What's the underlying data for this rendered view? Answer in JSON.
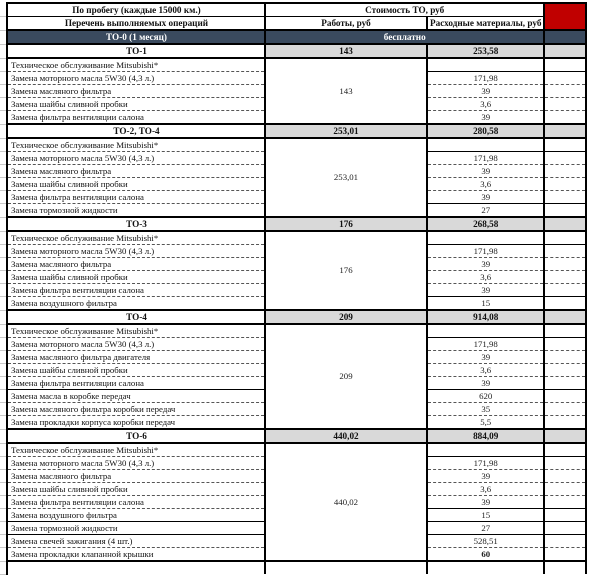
{
  "header": {
    "col_mileage": "По пробегу (каждые 15000 км.)",
    "col_cost": "Стоимость ТО, руб",
    "col_operations": "Перечень выполняемых операций",
    "col_works": "Работы, руб",
    "col_materials": "Расходные материалы, руб"
  },
  "free_row": {
    "label": "ТО-0 (1 месяц)",
    "value": "бесплатно"
  },
  "sections": [
    {
      "label": "ТО-1",
      "works": "143",
      "materials": "253,58",
      "items": [
        {
          "name": "Техническое обслуживание Mitsubishi*",
          "value": "",
          "vs": "s"
        },
        {
          "name": "Замена моторного масла 5W30 (4,3 л.)",
          "value": "171,98"
        },
        {
          "name": "Замена масляного фильтра",
          "value": "39"
        },
        {
          "name": "Замена шайбы сливной пробки",
          "value": "3,6"
        },
        {
          "name": "Замена фильтра вентиляции салона",
          "value": "39"
        }
      ]
    },
    {
      "label": "ТО-2, ТО-4",
      "works": "253,01",
      "materials": "280,58",
      "items": [
        {
          "name": "Техническое обслуживание Mitsubishi*",
          "value": "",
          "vs": "s"
        },
        {
          "name": "Замена моторного масла 5W30 (4,3 л.)",
          "value": "171,98"
        },
        {
          "name": "Замена масляного фильтра",
          "value": "39"
        },
        {
          "name": "Замена шайбы сливной пробки",
          "value": "3,6"
        },
        {
          "name": "Замена фильтра вентиляции салона",
          "value": "39",
          "vs": "s"
        },
        {
          "name": "Замена тормозной жидкости",
          "value": "27"
        }
      ]
    },
    {
      "label": "ТО-3",
      "works": "176",
      "materials": "268,58",
      "items": [
        {
          "name": "Техническое обслуживание Mitsubishi*",
          "value": "",
          "vs": "s"
        },
        {
          "name": "Замена моторного масла 5W30 (4,3 л.)",
          "value": "171,98"
        },
        {
          "name": "Замена масляного фильтра",
          "value": "39"
        },
        {
          "name": "Замена шайбы сливной пробки",
          "value": "3,6"
        },
        {
          "name": "Замена фильтра вентиляции салона",
          "value": "39",
          "vs": "s"
        },
        {
          "name": "Замена воздушного фильтра",
          "value": "15"
        }
      ]
    },
    {
      "label": "ТО-4",
      "works": "209",
      "materials": "914,08",
      "items": [
        {
          "name": "Техническое обслуживание Mitsubishi*",
          "value": "",
          "vs": "s"
        },
        {
          "name": "Замена моторного масла 5W30 (4,3 л.)",
          "value": "171,98"
        },
        {
          "name": "Замена масляного фильтра двигателя",
          "value": "39"
        },
        {
          "name": "Замена шайбы сливной пробки",
          "value": "3,6"
        },
        {
          "name": "Замена фильтра вентиляции салона",
          "value": "39",
          "ns": "s",
          "vs": "s"
        },
        {
          "name": "Замена масла в коробке передач",
          "value": "620"
        },
        {
          "name": "Замена масляного фильтра коробки передач",
          "value": "35"
        },
        {
          "name": "Замена прокладки корпуса коробки передач",
          "value": "5,5"
        }
      ]
    },
    {
      "label": "ТО-6",
      "works": "440,02",
      "materials": "884,09",
      "items": [
        {
          "name": "Техническое обслуживание Mitsubishi*",
          "value": "",
          "vs": "s"
        },
        {
          "name": "Замена моторного масла 5W30 (4,3 л.)",
          "value": "171,98"
        },
        {
          "name": "Замена масляного фильтра",
          "value": "39"
        },
        {
          "name": "Замена шайбы сливной пробки",
          "value": "3,6"
        },
        {
          "name": "Замена фильтра вентиляции салона",
          "value": "39",
          "vs": "s"
        },
        {
          "name": "Замена воздушного фильтра",
          "value": "15",
          "ns": "s",
          "vs": "s"
        },
        {
          "name": "Замена тормозной жидкости",
          "value": "27",
          "ns": "s",
          "vs": "s"
        },
        {
          "name": "Замена свечей зажигания (4 шт.)",
          "value": "528,51"
        },
        {
          "name": "Замена прокладки клапанной крышки",
          "value": "60",
          "bold": true
        }
      ]
    }
  ],
  "colors": {
    "marker_red": "#c00000",
    "dark_row": "#3a4a5e",
    "summary_gray": "#d9d9d9"
  }
}
